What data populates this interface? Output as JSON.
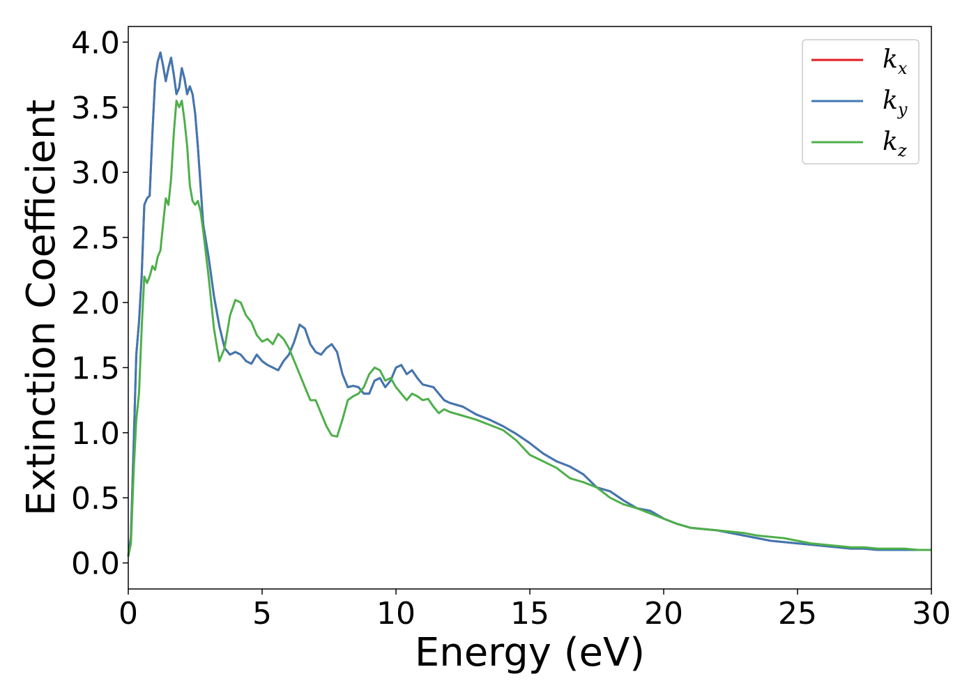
{
  "chart_data": {
    "type": "line",
    "title": "",
    "xlabel": "Energy (eV)",
    "ylabel": "Extinction Coefficient",
    "xlim": [
      0,
      30
    ],
    "ylim": [
      -0.2,
      4.12
    ],
    "xticks": [
      0,
      5,
      10,
      15,
      20,
      25,
      30
    ],
    "xtick_labels": [
      "0",
      "5",
      "10",
      "15",
      "20",
      "25",
      "30"
    ],
    "yticks": [
      0.0,
      0.5,
      1.0,
      1.5,
      2.0,
      2.5,
      3.0,
      3.5,
      4.0
    ],
    "ytick_labels": [
      "0.0",
      "0.5",
      "1.0",
      "1.5",
      "2.0",
      "2.5",
      "3.0",
      "3.5",
      "4.0"
    ],
    "grid": false,
    "legend_position": "top-right",
    "series": [
      {
        "name": "kx",
        "legend_main": "k",
        "legend_sub": "x",
        "color": "#e41a1c",
        "x": [
          0,
          0.1,
          0.2,
          0.3,
          0.4,
          0.5,
          0.6,
          0.7,
          0.8,
          0.9,
          1.0,
          1.1,
          1.2,
          1.3,
          1.4,
          1.5,
          1.6,
          1.7,
          1.8,
          1.9,
          2.0,
          2.1,
          2.2,
          2.3,
          2.4,
          2.5,
          2.6,
          2.8,
          3.0,
          3.2,
          3.4,
          3.6,
          3.8,
          4.0,
          4.2,
          4.4,
          4.6,
          4.8,
          5.0,
          5.2,
          5.4,
          5.6,
          5.8,
          6.0,
          6.2,
          6.4,
          6.6,
          6.8,
          7.0,
          7.2,
          7.4,
          7.6,
          7.8,
          8.0,
          8.2,
          8.4,
          8.6,
          8.8,
          9.0,
          9.2,
          9.4,
          9.6,
          9.8,
          10.0,
          10.2,
          10.4,
          10.6,
          10.8,
          11.0,
          11.2,
          11.4,
          11.6,
          11.8,
          12.0,
          12.5,
          13.0,
          13.5,
          14.0,
          14.5,
          15.0,
          15.5,
          16.0,
          16.5,
          17.0,
          17.5,
          18.0,
          18.5,
          19.0,
          19.5,
          20.0,
          20.5,
          21.0,
          21.5,
          22.0,
          22.5,
          23.0,
          23.5,
          24.0,
          24.5,
          25.0,
          25.5,
          26.0,
          26.5,
          27.0,
          27.5,
          28.0,
          28.5,
          29.0,
          29.5,
          30.0
        ],
        "y": [
          0.05,
          0.2,
          0.9,
          1.6,
          1.85,
          2.2,
          2.75,
          2.8,
          2.82,
          3.3,
          3.7,
          3.85,
          3.92,
          3.82,
          3.7,
          3.8,
          3.88,
          3.75,
          3.6,
          3.65,
          3.8,
          3.72,
          3.6,
          3.66,
          3.6,
          3.45,
          3.2,
          2.6,
          2.35,
          2.05,
          1.82,
          1.65,
          1.6,
          1.62,
          1.6,
          1.55,
          1.53,
          1.6,
          1.55,
          1.52,
          1.5,
          1.48,
          1.55,
          1.6,
          1.7,
          1.83,
          1.8,
          1.68,
          1.62,
          1.6,
          1.65,
          1.68,
          1.62,
          1.45,
          1.35,
          1.36,
          1.35,
          1.3,
          1.3,
          1.4,
          1.42,
          1.35,
          1.4,
          1.5,
          1.52,
          1.45,
          1.48,
          1.42,
          1.37,
          1.36,
          1.35,
          1.3,
          1.25,
          1.23,
          1.2,
          1.14,
          1.1,
          1.05,
          0.99,
          0.92,
          0.84,
          0.78,
          0.74,
          0.68,
          0.58,
          0.55,
          0.48,
          0.42,
          0.4,
          0.34,
          0.3,
          0.27,
          0.26,
          0.25,
          0.23,
          0.21,
          0.19,
          0.17,
          0.16,
          0.15,
          0.14,
          0.13,
          0.12,
          0.11,
          0.11,
          0.1,
          0.1,
          0.1,
          0.1,
          0.1
        ]
      },
      {
        "name": "ky",
        "legend_main": "k",
        "legend_sub": "y",
        "color": "#3e78b2",
        "x": [
          0,
          0.1,
          0.2,
          0.3,
          0.4,
          0.5,
          0.6,
          0.7,
          0.8,
          0.9,
          1.0,
          1.1,
          1.2,
          1.3,
          1.4,
          1.5,
          1.6,
          1.7,
          1.8,
          1.9,
          2.0,
          2.1,
          2.2,
          2.3,
          2.4,
          2.5,
          2.6,
          2.8,
          3.0,
          3.2,
          3.4,
          3.6,
          3.8,
          4.0,
          4.2,
          4.4,
          4.6,
          4.8,
          5.0,
          5.2,
          5.4,
          5.6,
          5.8,
          6.0,
          6.2,
          6.4,
          6.6,
          6.8,
          7.0,
          7.2,
          7.4,
          7.6,
          7.8,
          8.0,
          8.2,
          8.4,
          8.6,
          8.8,
          9.0,
          9.2,
          9.4,
          9.6,
          9.8,
          10.0,
          10.2,
          10.4,
          10.6,
          10.8,
          11.0,
          11.2,
          11.4,
          11.6,
          11.8,
          12.0,
          12.5,
          13.0,
          13.5,
          14.0,
          14.5,
          15.0,
          15.5,
          16.0,
          16.5,
          17.0,
          17.5,
          18.0,
          18.5,
          19.0,
          19.5,
          20.0,
          20.5,
          21.0,
          21.5,
          22.0,
          22.5,
          23.0,
          23.5,
          24.0,
          24.5,
          25.0,
          25.5,
          26.0,
          26.5,
          27.0,
          27.5,
          28.0,
          28.5,
          29.0,
          29.5,
          30.0
        ],
        "y": [
          0.05,
          0.2,
          0.9,
          1.6,
          1.85,
          2.2,
          2.75,
          2.8,
          2.82,
          3.3,
          3.7,
          3.85,
          3.92,
          3.82,
          3.7,
          3.8,
          3.88,
          3.75,
          3.6,
          3.65,
          3.8,
          3.72,
          3.6,
          3.66,
          3.6,
          3.45,
          3.2,
          2.6,
          2.35,
          2.05,
          1.82,
          1.65,
          1.6,
          1.62,
          1.6,
          1.55,
          1.53,
          1.6,
          1.55,
          1.52,
          1.5,
          1.48,
          1.55,
          1.6,
          1.7,
          1.83,
          1.8,
          1.68,
          1.62,
          1.6,
          1.65,
          1.68,
          1.62,
          1.45,
          1.35,
          1.36,
          1.35,
          1.3,
          1.3,
          1.4,
          1.42,
          1.35,
          1.4,
          1.5,
          1.52,
          1.45,
          1.48,
          1.42,
          1.37,
          1.36,
          1.35,
          1.3,
          1.25,
          1.23,
          1.2,
          1.14,
          1.1,
          1.05,
          0.99,
          0.92,
          0.84,
          0.78,
          0.74,
          0.68,
          0.58,
          0.55,
          0.48,
          0.42,
          0.4,
          0.34,
          0.3,
          0.27,
          0.26,
          0.25,
          0.23,
          0.21,
          0.19,
          0.17,
          0.16,
          0.15,
          0.14,
          0.13,
          0.12,
          0.11,
          0.11,
          0.1,
          0.1,
          0.1,
          0.1,
          0.1
        ]
      },
      {
        "name": "kz",
        "legend_main": "k",
        "legend_sub": "z",
        "color": "#4daf4a",
        "x": [
          0,
          0.1,
          0.2,
          0.3,
          0.4,
          0.5,
          0.6,
          0.7,
          0.8,
          0.9,
          1.0,
          1.1,
          1.2,
          1.3,
          1.4,
          1.5,
          1.6,
          1.7,
          1.8,
          1.9,
          2.0,
          2.1,
          2.2,
          2.3,
          2.4,
          2.5,
          2.6,
          2.7,
          2.8,
          3.0,
          3.2,
          3.4,
          3.6,
          3.8,
          4.0,
          4.2,
          4.4,
          4.6,
          4.8,
          5.0,
          5.2,
          5.4,
          5.6,
          5.8,
          6.0,
          6.2,
          6.4,
          6.6,
          6.8,
          7.0,
          7.2,
          7.4,
          7.6,
          7.8,
          8.0,
          8.2,
          8.4,
          8.6,
          8.8,
          9.0,
          9.2,
          9.4,
          9.6,
          9.8,
          10.0,
          10.2,
          10.4,
          10.6,
          10.8,
          11.0,
          11.2,
          11.4,
          11.6,
          11.8,
          12.0,
          12.5,
          13.0,
          13.5,
          14.0,
          14.5,
          15.0,
          15.5,
          16.0,
          16.5,
          17.0,
          17.5,
          18.0,
          18.5,
          19.0,
          19.5,
          20.0,
          20.5,
          21.0,
          21.5,
          22.0,
          22.5,
          23.0,
          23.5,
          24.0,
          24.5,
          25.0,
          25.5,
          26.0,
          26.5,
          27.0,
          27.5,
          28.0,
          28.5,
          29.0,
          29.5,
          30.0
        ],
        "y": [
          0.05,
          0.15,
          0.7,
          1.1,
          1.3,
          1.8,
          2.2,
          2.15,
          2.2,
          2.28,
          2.25,
          2.35,
          2.4,
          2.6,
          2.8,
          2.75,
          2.95,
          3.3,
          3.55,
          3.5,
          3.55,
          3.4,
          3.2,
          2.9,
          2.78,
          2.75,
          2.78,
          2.7,
          2.55,
          2.2,
          1.8,
          1.55,
          1.65,
          1.9,
          2.02,
          2.0,
          1.9,
          1.85,
          1.75,
          1.7,
          1.72,
          1.68,
          1.76,
          1.72,
          1.65,
          1.55,
          1.45,
          1.35,
          1.25,
          1.25,
          1.15,
          1.05,
          0.98,
          0.97,
          1.1,
          1.25,
          1.28,
          1.3,
          1.35,
          1.45,
          1.5,
          1.48,
          1.4,
          1.42,
          1.35,
          1.3,
          1.25,
          1.3,
          1.28,
          1.25,
          1.26,
          1.2,
          1.15,
          1.18,
          1.16,
          1.13,
          1.1,
          1.06,
          1.02,
          0.94,
          0.83,
          0.78,
          0.73,
          0.65,
          0.62,
          0.58,
          0.5,
          0.45,
          0.42,
          0.38,
          0.34,
          0.3,
          0.27,
          0.26,
          0.25,
          0.24,
          0.23,
          0.21,
          0.2,
          0.19,
          0.17,
          0.15,
          0.14,
          0.13,
          0.12,
          0.12,
          0.11,
          0.11,
          0.11,
          0.1,
          0.1
        ]
      }
    ]
  }
}
